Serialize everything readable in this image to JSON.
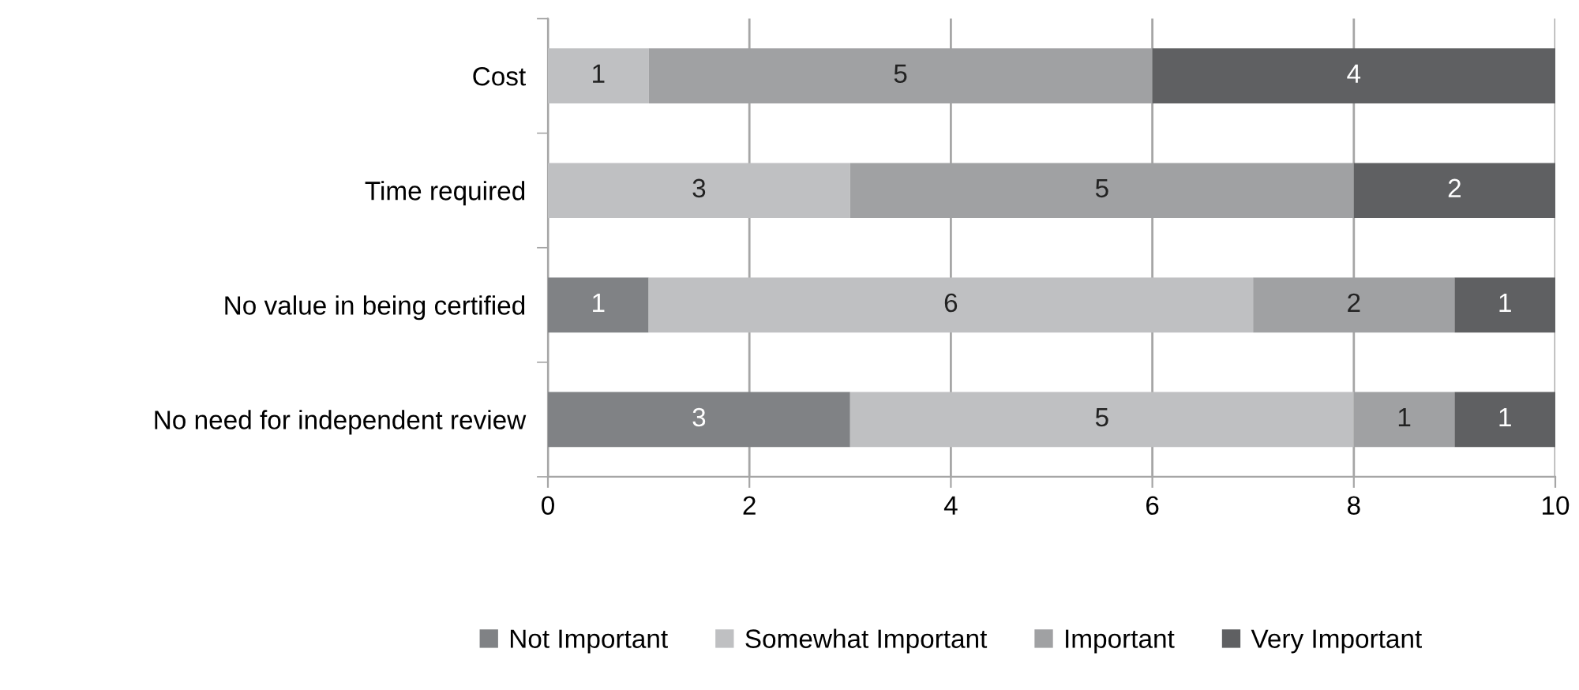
{
  "chart_data": {
    "type": "bar",
    "orientation": "horizontal",
    "stacked": true,
    "categories": [
      "Cost",
      "Time required",
      "No value in being certified",
      "No need for independent review"
    ],
    "series": [
      {
        "name": "Not Important",
        "color": "#808285",
        "values": [
          0,
          0,
          1,
          3
        ],
        "value_labels": [
          null,
          null,
          "1",
          "3"
        ]
      },
      {
        "name": "Somewhat Important",
        "color": "#bfc0c2",
        "values": [
          1,
          3,
          6,
          5
        ],
        "value_labels": [
          "1",
          "3",
          "6",
          "5"
        ]
      },
      {
        "name": "Important",
        "color": "#a0a1a3",
        "values": [
          5,
          5,
          2,
          1
        ],
        "value_labels": [
          "5",
          "5",
          "2",
          "1"
        ]
      },
      {
        "name": "Very Important",
        "color": "#5f6062",
        "values": [
          4,
          2,
          1,
          1
        ],
        "value_labels": [
          "4",
          "2",
          "1",
          "1"
        ]
      }
    ],
    "xlim": [
      0,
      10
    ],
    "xticks": [
      0,
      2,
      4,
      6,
      8,
      10
    ],
    "grid": "x",
    "legend": "bottom"
  }
}
